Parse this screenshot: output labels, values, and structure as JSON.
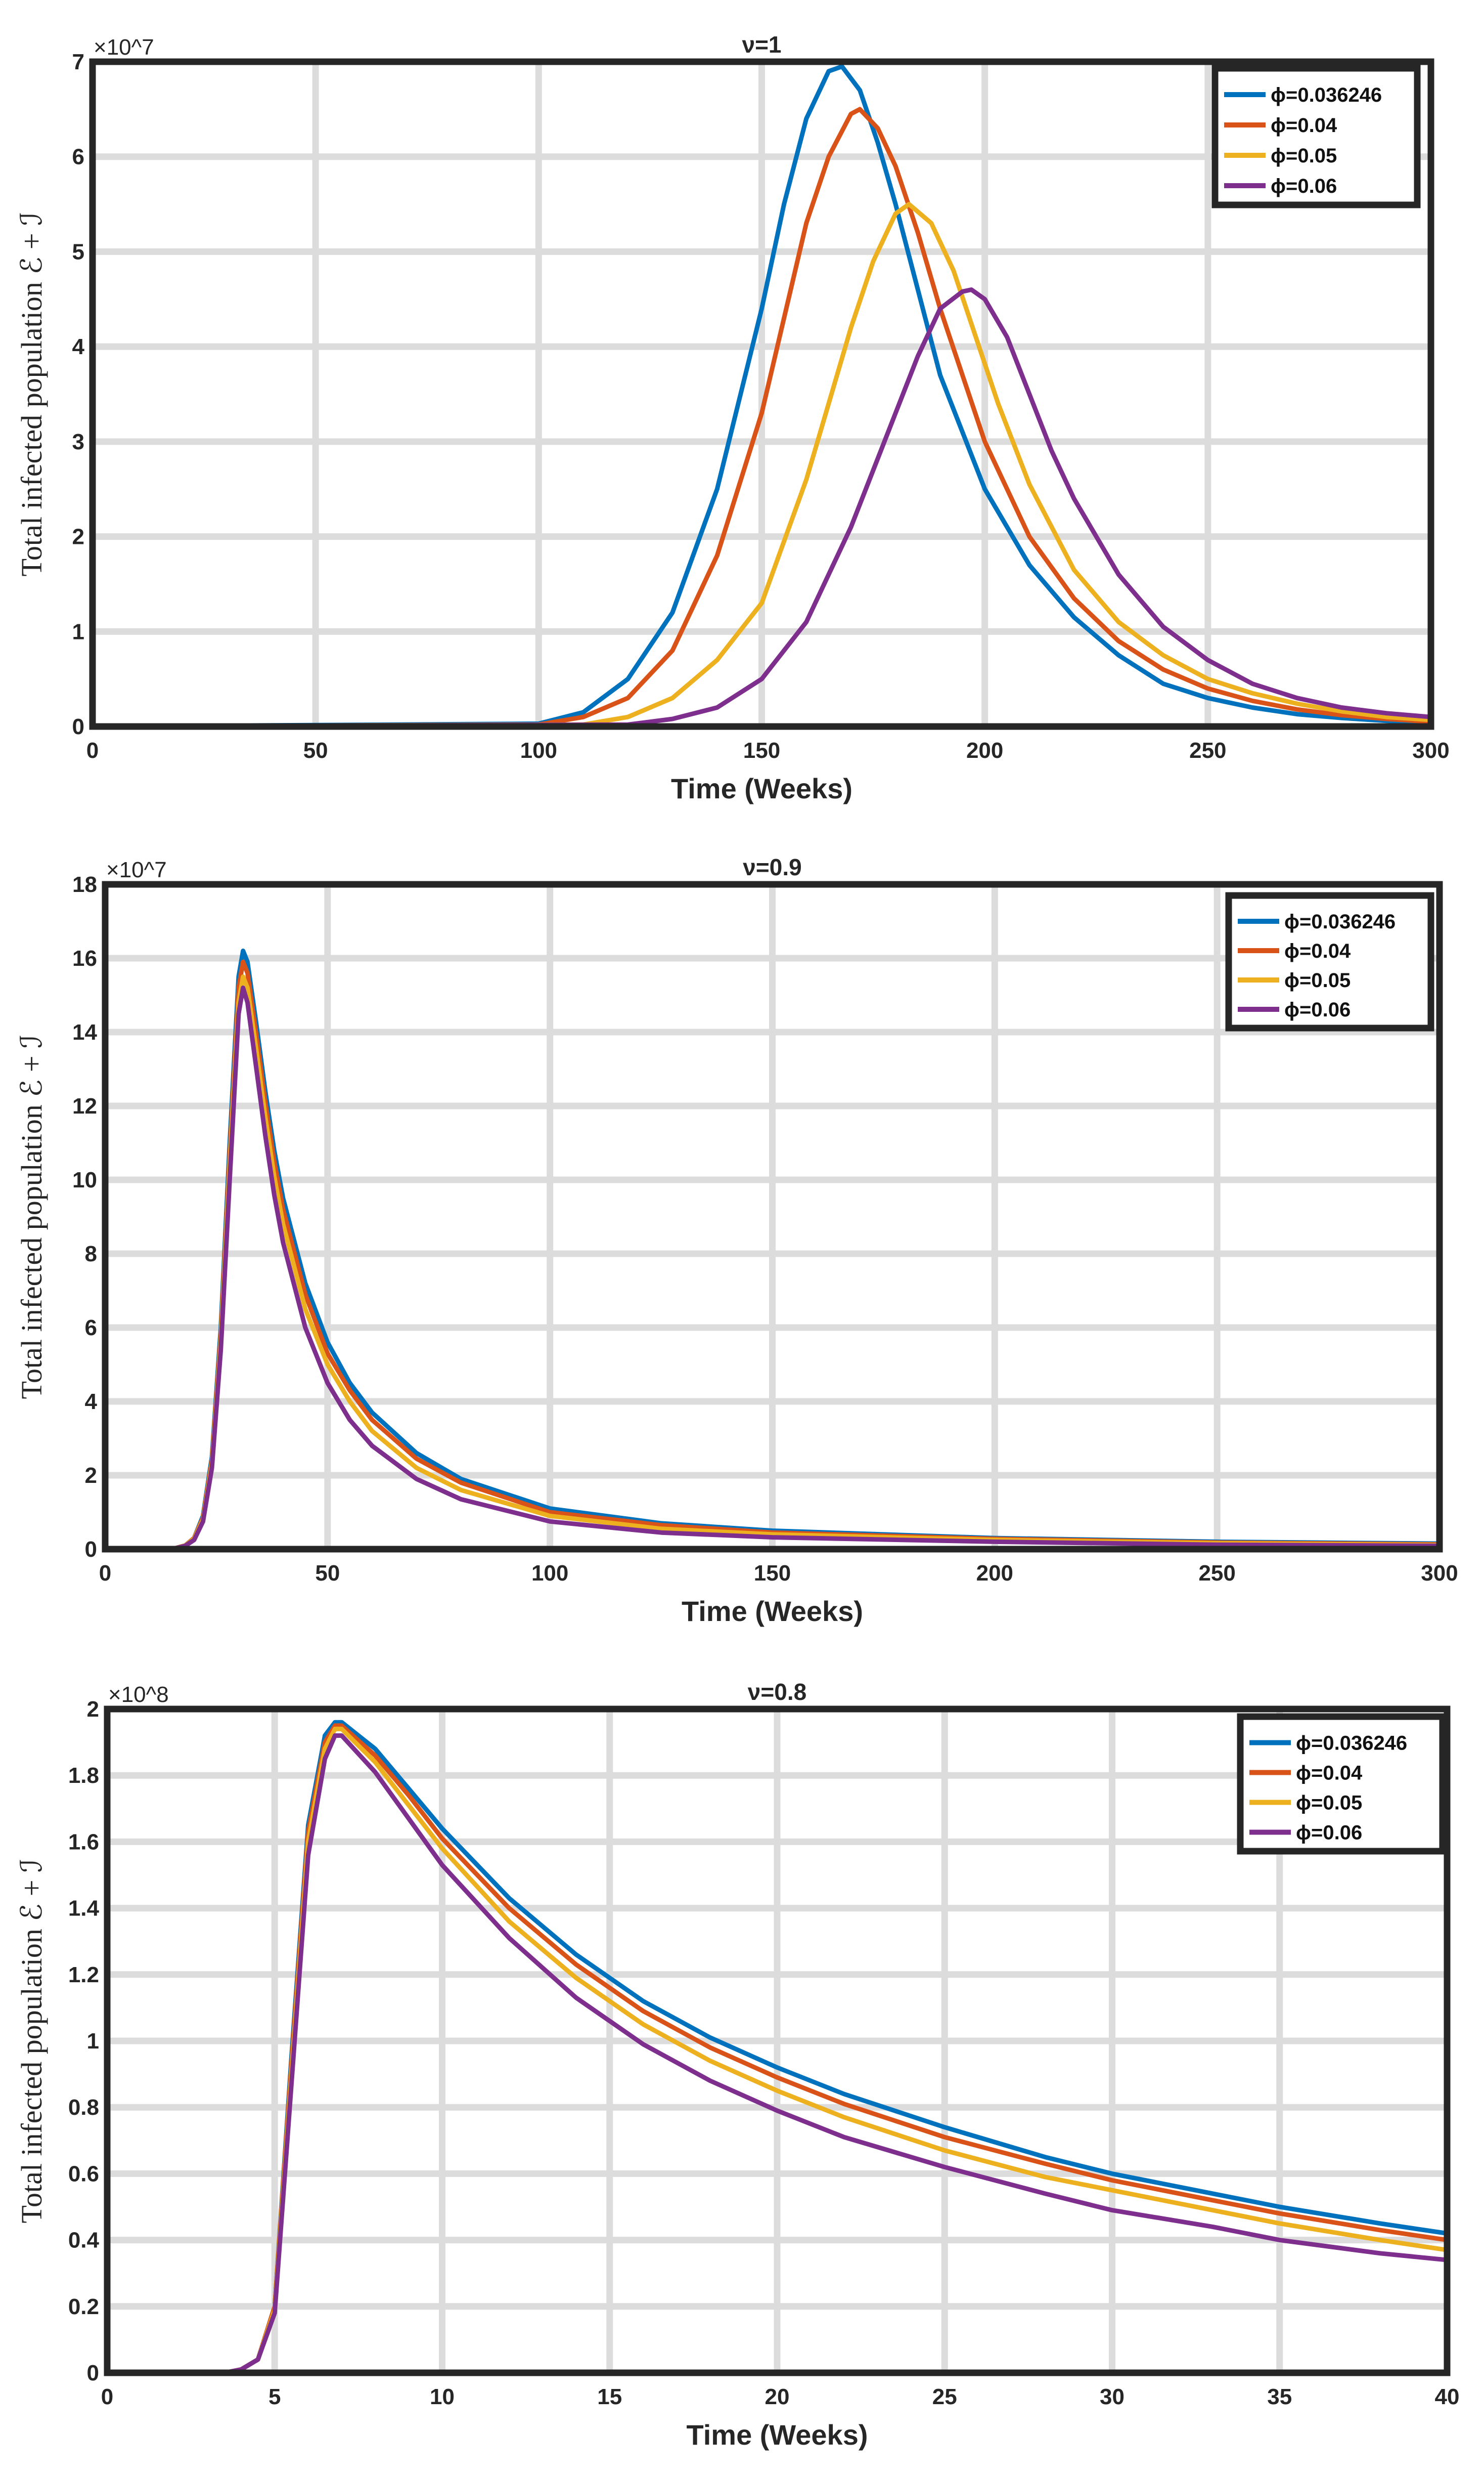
{
  "figure": {
    "ylabel_text": "Total infected population ℰ + ℐ"
  },
  "legend_labels": [
    "ϕ=0.036246",
    "ϕ=0.04",
    "ϕ=0.05",
    "ϕ=0.06"
  ],
  "colors": [
    "#0072BD",
    "#D95319",
    "#EDB120",
    "#7E2F8E"
  ],
  "chart_data": [
    {
      "type": "line",
      "title": "ν=1",
      "xlabel": "Time (Weeks)",
      "ylabel": "Total infected population ℰ + ℐ",
      "xlim": [
        0,
        300
      ],
      "ylim": [
        0,
        7
      ],
      "y_exponent": "×10^7",
      "x_ticks": [
        0,
        50,
        100,
        150,
        200,
        250,
        300
      ],
      "y_ticks": [
        0,
        1,
        2,
        3,
        4,
        5,
        6,
        7
      ],
      "grid": true,
      "legend_position": "top-right",
      "series": [
        {
          "name": "ϕ=0.036246",
          "x": [
            0,
            100,
            110,
            120,
            130,
            140,
            150,
            155,
            160,
            165,
            168,
            172,
            176,
            180,
            185,
            190,
            200,
            210,
            220,
            230,
            240,
            250,
            260,
            270,
            280,
            290,
            300
          ],
          "values": [
            0,
            0.03,
            0.15,
            0.5,
            1.2,
            2.5,
            4.4,
            5.5,
            6.4,
            6.9,
            6.95,
            6.7,
            6.15,
            5.5,
            4.6,
            3.7,
            2.5,
            1.7,
            1.15,
            0.75,
            0.45,
            0.3,
            0.2,
            0.13,
            0.09,
            0.06,
            0.04
          ]
        },
        {
          "name": "ϕ=0.04",
          "x": [
            0,
            100,
            110,
            120,
            130,
            140,
            150,
            155,
            160,
            165,
            170,
            172,
            176,
            180,
            185,
            190,
            195,
            200,
            210,
            220,
            230,
            240,
            250,
            260,
            270,
            280,
            290,
            300
          ],
          "values": [
            0,
            0.02,
            0.1,
            0.3,
            0.8,
            1.8,
            3.3,
            4.3,
            5.3,
            6.0,
            6.45,
            6.5,
            6.3,
            5.9,
            5.2,
            4.4,
            3.7,
            3.0,
            2.0,
            1.35,
            0.9,
            0.6,
            0.4,
            0.27,
            0.18,
            0.12,
            0.08,
            0.05
          ]
        },
        {
          "name": "ϕ=0.05",
          "x": [
            0,
            110,
            120,
            130,
            140,
            150,
            160,
            165,
            170,
            175,
            180,
            183,
            188,
            193,
            198,
            203,
            210,
            220,
            230,
            240,
            250,
            260,
            270,
            280,
            290,
            300
          ],
          "values": [
            0,
            0.02,
            0.1,
            0.3,
            0.7,
            1.3,
            2.6,
            3.4,
            4.2,
            4.9,
            5.4,
            5.5,
            5.3,
            4.8,
            4.1,
            3.4,
            2.55,
            1.65,
            1.1,
            0.75,
            0.5,
            0.35,
            0.24,
            0.16,
            0.1,
            0.07
          ]
        },
        {
          "name": "ϕ=0.06",
          "x": [
            0,
            120,
            130,
            140,
            150,
            160,
            170,
            175,
            180,
            185,
            190,
            195,
            197,
            200,
            205,
            210,
            215,
            220,
            230,
            240,
            250,
            260,
            270,
            280,
            290,
            300
          ],
          "values": [
            0,
            0.02,
            0.08,
            0.2,
            0.5,
            1.1,
            2.1,
            2.7,
            3.3,
            3.9,
            4.4,
            4.58,
            4.6,
            4.5,
            4.1,
            3.5,
            2.9,
            2.4,
            1.6,
            1.05,
            0.7,
            0.45,
            0.3,
            0.2,
            0.14,
            0.1
          ]
        }
      ]
    },
    {
      "type": "line",
      "title": "ν=0.9",
      "xlabel": "Time (Weeks)",
      "ylabel": "Total infected population ℰ + ℐ",
      "xlim": [
        0,
        300
      ],
      "ylim": [
        0,
        18
      ],
      "y_exponent": "×10^7",
      "x_ticks": [
        0,
        50,
        100,
        150,
        200,
        250,
        300
      ],
      "y_ticks": [
        0,
        2,
        4,
        6,
        8,
        10,
        12,
        14,
        16,
        18
      ],
      "grid": true,
      "legend_position": "top-right",
      "series": [
        {
          "name": "ϕ=0.036246",
          "x": [
            0,
            15,
            18,
            20,
            22,
            24,
            26,
            28,
            30,
            31,
            32,
            34,
            36,
            38,
            40,
            45,
            50,
            55,
            60,
            70,
            80,
            100,
            125,
            150,
            200,
            250,
            300
          ],
          "values": [
            0,
            0,
            0.1,
            0.3,
            0.9,
            2.5,
            6.0,
            11.0,
            15.5,
            16.2,
            15.9,
            14.2,
            12.4,
            10.8,
            9.5,
            7.2,
            5.6,
            4.5,
            3.7,
            2.6,
            1.9,
            1.1,
            0.7,
            0.5,
            0.3,
            0.2,
            0.15
          ]
        },
        {
          "name": "ϕ=0.04",
          "x": [
            0,
            15,
            18,
            20,
            22,
            24,
            26,
            28,
            30,
            31,
            32,
            34,
            36,
            38,
            40,
            45,
            50,
            55,
            60,
            70,
            80,
            100,
            125,
            150,
            200,
            250,
            300
          ],
          "values": [
            0,
            0,
            0.1,
            0.3,
            0.85,
            2.4,
            5.8,
            10.7,
            15.2,
            15.9,
            15.6,
            13.9,
            12.1,
            10.5,
            9.2,
            6.9,
            5.3,
            4.3,
            3.5,
            2.45,
            1.8,
            1.0,
            0.65,
            0.45,
            0.28,
            0.18,
            0.13
          ]
        },
        {
          "name": "ϕ=0.05",
          "x": [
            0,
            15,
            18,
            20,
            22,
            24,
            26,
            28,
            30,
            31,
            32,
            34,
            36,
            38,
            40,
            45,
            50,
            55,
            60,
            70,
            80,
            100,
            125,
            150,
            200,
            250,
            300
          ],
          "values": [
            0,
            0,
            0.1,
            0.28,
            0.8,
            2.3,
            5.6,
            10.4,
            14.8,
            15.5,
            15.2,
            13.5,
            11.7,
            10.1,
            8.8,
            6.5,
            5.0,
            4.0,
            3.2,
            2.2,
            1.6,
            0.9,
            0.55,
            0.4,
            0.25,
            0.16,
            0.11
          ]
        },
        {
          "name": "ϕ=0.06",
          "x": [
            0,
            15,
            18,
            20,
            22,
            24,
            26,
            28,
            30,
            31,
            32,
            34,
            36,
            38,
            40,
            45,
            50,
            55,
            60,
            70,
            80,
            100,
            125,
            150,
            200,
            250,
            300
          ],
          "values": [
            0,
            0,
            0.09,
            0.25,
            0.75,
            2.2,
            5.4,
            10.0,
            14.5,
            15.2,
            14.8,
            13.0,
            11.2,
            9.6,
            8.3,
            6.0,
            4.5,
            3.5,
            2.8,
            1.9,
            1.35,
            0.75,
            0.45,
            0.32,
            0.2,
            0.12,
            0.09
          ]
        }
      ]
    },
    {
      "type": "line",
      "title": "ν=0.8",
      "xlabel": "Time (Weeks)",
      "ylabel": "Total infected population ℰ + ℐ",
      "xlim": [
        0,
        40
      ],
      "ylim": [
        0,
        2
      ],
      "y_exponent": "×10^8",
      "x_ticks": [
        0,
        5,
        10,
        15,
        20,
        25,
        30,
        35,
        40
      ],
      "y_ticks": [
        0,
        0.2,
        0.4,
        0.6,
        0.8,
        1,
        1.2,
        1.4,
        1.6,
        1.8,
        2
      ],
      "grid": true,
      "legend_position": "top-right",
      "series": [
        {
          "name": "ϕ=0.036246",
          "x": [
            0,
            3.5,
            4,
            4.5,
            5,
            5.5,
            6,
            6.5,
            6.8,
            7,
            8,
            9,
            10,
            12,
            14,
            16,
            18,
            20,
            22,
            25,
            28,
            30,
            33,
            35,
            38,
            40
          ],
          "values": [
            0,
            0,
            0.01,
            0.04,
            0.2,
            0.95,
            1.65,
            1.92,
            1.96,
            1.96,
            1.88,
            1.76,
            1.64,
            1.43,
            1.26,
            1.12,
            1.01,
            0.92,
            0.84,
            0.74,
            0.65,
            0.6,
            0.54,
            0.5,
            0.45,
            0.42
          ]
        },
        {
          "name": "ϕ=0.04",
          "x": [
            0,
            3.5,
            4,
            4.5,
            5,
            5.5,
            6,
            6.5,
            6.8,
            7,
            8,
            9,
            10,
            12,
            14,
            16,
            18,
            20,
            22,
            25,
            28,
            30,
            33,
            35,
            38,
            40
          ],
          "values": [
            0,
            0,
            0.01,
            0.04,
            0.2,
            0.93,
            1.63,
            1.9,
            1.95,
            1.95,
            1.86,
            1.74,
            1.61,
            1.4,
            1.23,
            1.09,
            0.98,
            0.89,
            0.81,
            0.71,
            0.63,
            0.58,
            0.52,
            0.48,
            0.43,
            0.4
          ]
        },
        {
          "name": "ϕ=0.05",
          "x": [
            0,
            3.5,
            4,
            4.5,
            5,
            5.5,
            6,
            6.5,
            6.8,
            7,
            8,
            9,
            10,
            12,
            14,
            16,
            18,
            20,
            22,
            25,
            28,
            30,
            33,
            35,
            38,
            40
          ],
          "values": [
            0,
            0,
            0.01,
            0.04,
            0.19,
            0.9,
            1.6,
            1.88,
            1.94,
            1.94,
            1.84,
            1.71,
            1.58,
            1.36,
            1.19,
            1.05,
            0.94,
            0.85,
            0.77,
            0.67,
            0.59,
            0.55,
            0.49,
            0.45,
            0.4,
            0.37
          ]
        },
        {
          "name": "ϕ=0.06",
          "x": [
            0,
            3.5,
            4,
            4.5,
            5,
            5.5,
            6,
            6.5,
            6.8,
            7,
            8,
            9,
            10,
            12,
            14,
            16,
            18,
            20,
            22,
            25,
            28,
            30,
            33,
            35,
            38,
            40
          ],
          "values": [
            0,
            0,
            0.01,
            0.04,
            0.18,
            0.87,
            1.56,
            1.85,
            1.92,
            1.92,
            1.81,
            1.67,
            1.53,
            1.31,
            1.13,
            0.99,
            0.88,
            0.79,
            0.71,
            0.62,
            0.54,
            0.49,
            0.44,
            0.4,
            0.36,
            0.34
          ]
        }
      ]
    }
  ]
}
